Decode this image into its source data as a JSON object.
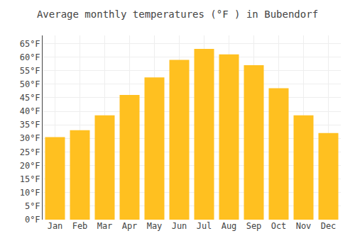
{
  "chart_data": {
    "type": "bar",
    "title": "Average monthly temperatures (°F ) in Bubendorf",
    "categories": [
      "Jan",
      "Feb",
      "Mar",
      "Apr",
      "May",
      "Jun",
      "Jul",
      "Aug",
      "Sep",
      "Oct",
      "Nov",
      "Dec"
    ],
    "values": [
      30.5,
      33.0,
      38.5,
      46.0,
      52.5,
      59.0,
      63.0,
      61.0,
      57.0,
      48.5,
      38.5,
      32.0
    ],
    "color": "#FFC020",
    "ylim": [
      0,
      68
    ],
    "yticks": [
      {
        "value": 0,
        "label": "0°F"
      },
      {
        "value": 5,
        "label": "5°F"
      },
      {
        "value": 10,
        "label": "10°F"
      },
      {
        "value": 15,
        "label": "15°F"
      },
      {
        "value": 20,
        "label": "20°F"
      },
      {
        "value": 25,
        "label": "25°F"
      },
      {
        "value": 30,
        "label": "30°F"
      },
      {
        "value": 35,
        "label": "35°F"
      },
      {
        "value": 40,
        "label": "40°F"
      },
      {
        "value": 45,
        "label": "45°F"
      },
      {
        "value": 50,
        "label": "50°F"
      },
      {
        "value": 55,
        "label": "55°F"
      },
      {
        "value": 60,
        "label": "60°F"
      },
      {
        "value": 65,
        "label": "65°F"
      }
    ],
    "grid": true
  }
}
